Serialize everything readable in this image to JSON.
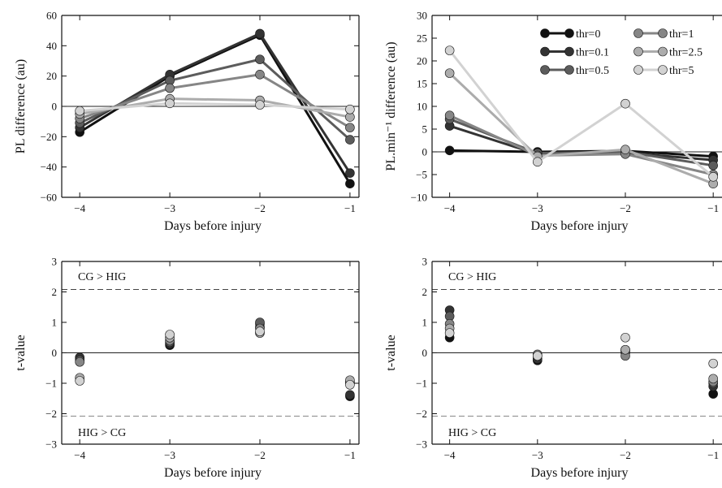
{
  "figure": {
    "thresholds": [
      {
        "name": "thr=0",
        "color": "#111111"
      },
      {
        "name": "thr=0.1",
        "color": "#333333"
      },
      {
        "name": "thr=0.5",
        "color": "#5c5c5c"
      },
      {
        "name": "thr=1",
        "color": "#868686"
      },
      {
        "name": "thr=2.5",
        "color": "#acacac"
      },
      {
        "name": "thr=5",
        "color": "#d2d2d2"
      }
    ]
  },
  "chart_data": [
    {
      "type": "line",
      "panel": "top-left",
      "xlabel": "Days before injury",
      "ylabel": "PL difference (au)",
      "x": [
        -4,
        -3,
        -2,
        -1
      ],
      "xticks": [
        "−4",
        "−3",
        "−2",
        "−1"
      ],
      "xlim": [
        -4.2,
        -0.9
      ],
      "ylim": [
        -60,
        60
      ],
      "yticks": [
        "−60",
        "−40",
        "−20",
        "0",
        "20",
        "40",
        "60"
      ],
      "zero_line": true,
      "series": [
        {
          "name": "thr=0",
          "values": [
            -17,
            20,
            47,
            -51
          ]
        },
        {
          "name": "thr=0.1",
          "values": [
            -14,
            21,
            48,
            -44
          ]
        },
        {
          "name": "thr=0.5",
          "values": [
            -11,
            17,
            31,
            -22
          ]
        },
        {
          "name": "thr=1",
          "values": [
            -8,
            12,
            21,
            -14
          ]
        },
        {
          "name": "thr=2.5",
          "values": [
            -5,
            5,
            4,
            -7
          ]
        },
        {
          "name": "thr=5",
          "values": [
            -3,
            2,
            1,
            -2
          ]
        }
      ]
    },
    {
      "type": "line",
      "panel": "top-right",
      "xlabel": "Days before injury",
      "ylabel": "PL.min⁻¹ difference (au)",
      "x": [
        -4,
        -3,
        -2,
        -1
      ],
      "xticks": [
        "−4",
        "−3",
        "−2",
        "−1"
      ],
      "xlim": [
        -4.2,
        -0.9
      ],
      "ylim": [
        -10,
        30
      ],
      "yticks": [
        "−10",
        "−5",
        "0",
        "5",
        "10",
        "15",
        "20",
        "25",
        "30"
      ],
      "zero_line": true,
      "legend": "top-right",
      "series": [
        {
          "name": "thr=0",
          "values": [
            0.3,
            0,
            0.2,
            -1
          ]
        },
        {
          "name": "thr=0.1",
          "values": [
            5.7,
            -0.5,
            -0.2,
            -1.8
          ]
        },
        {
          "name": "thr=0.5",
          "values": [
            7.2,
            -0.3,
            0,
            -3
          ]
        },
        {
          "name": "thr=1",
          "values": [
            8,
            -0.8,
            -0.5,
            -5
          ]
        },
        {
          "name": "thr=2.5",
          "values": [
            17.3,
            -1,
            0.5,
            -7
          ]
        },
        {
          "name": "thr=5",
          "values": [
            22.3,
            -2.2,
            10.6,
            -5.5
          ]
        }
      ]
    },
    {
      "type": "scatter",
      "panel": "bottom-left",
      "xlabel": "Days before injury",
      "ylabel": "t-value",
      "x": [
        -4,
        -3,
        -2,
        -1
      ],
      "xticks": [
        "−4",
        "−3",
        "−2",
        "−1"
      ],
      "xlim": [
        -4.2,
        -0.9
      ],
      "ylim": [
        -3,
        3
      ],
      "yticks": [
        "−3",
        "−2",
        "−1",
        "0",
        "1",
        "2",
        "3"
      ],
      "zero_line": true,
      "critical_t": [
        2.08,
        -2.08
      ],
      "annotations": [
        "CG > HIG",
        "HIG > CG"
      ],
      "series": [
        {
          "name": "thr=0",
          "values": [
            -0.2,
            0.25,
            0.85,
            -1.43
          ]
        },
        {
          "name": "thr=0.1",
          "values": [
            -0.15,
            0.3,
            0.95,
            -1.38
          ]
        },
        {
          "name": "thr=0.5",
          "values": [
            -0.25,
            0.35,
            1.0,
            -1.0
          ]
        },
        {
          "name": "thr=1",
          "values": [
            -0.3,
            0.4,
            0.8,
            -0.95
          ]
        },
        {
          "name": "thr=2.5",
          "values": [
            -0.82,
            0.5,
            0.65,
            -0.9
          ]
        },
        {
          "name": "thr=5",
          "values": [
            -0.92,
            0.6,
            0.7,
            -1.05
          ]
        }
      ]
    },
    {
      "type": "scatter",
      "panel": "bottom-right",
      "xlabel": "Days before injury",
      "ylabel": "t-value",
      "x": [
        -4,
        -3,
        -2,
        -1
      ],
      "xticks": [
        "−4",
        "−3",
        "−2",
        "−1"
      ],
      "xlim": [
        -4.2,
        -0.9
      ],
      "ylim": [
        -3,
        3
      ],
      "yticks": [
        "−3",
        "−2",
        "−1",
        "0",
        "1",
        "2",
        "3"
      ],
      "zero_line": true,
      "critical_t": [
        2.08,
        -2.08
      ],
      "annotations": [
        "CG > HIG",
        "HIG > CG"
      ],
      "series": [
        {
          "name": "thr=0",
          "values": [
            0.5,
            -0.25,
            0.05,
            -1.35
          ]
        },
        {
          "name": "thr=0.1",
          "values": [
            1.4,
            -0.2,
            0.1,
            -1.1
          ]
        },
        {
          "name": "thr=0.5",
          "values": [
            1.2,
            -0.1,
            0.0,
            -1.0
          ]
        },
        {
          "name": "thr=1",
          "values": [
            0.95,
            -0.05,
            -0.1,
            -0.95
          ]
        },
        {
          "name": "thr=2.5",
          "values": [
            0.8,
            -0.1,
            0.1,
            -0.85
          ]
        },
        {
          "name": "thr=5",
          "values": [
            0.65,
            -0.1,
            0.5,
            -0.35
          ]
        }
      ]
    }
  ]
}
